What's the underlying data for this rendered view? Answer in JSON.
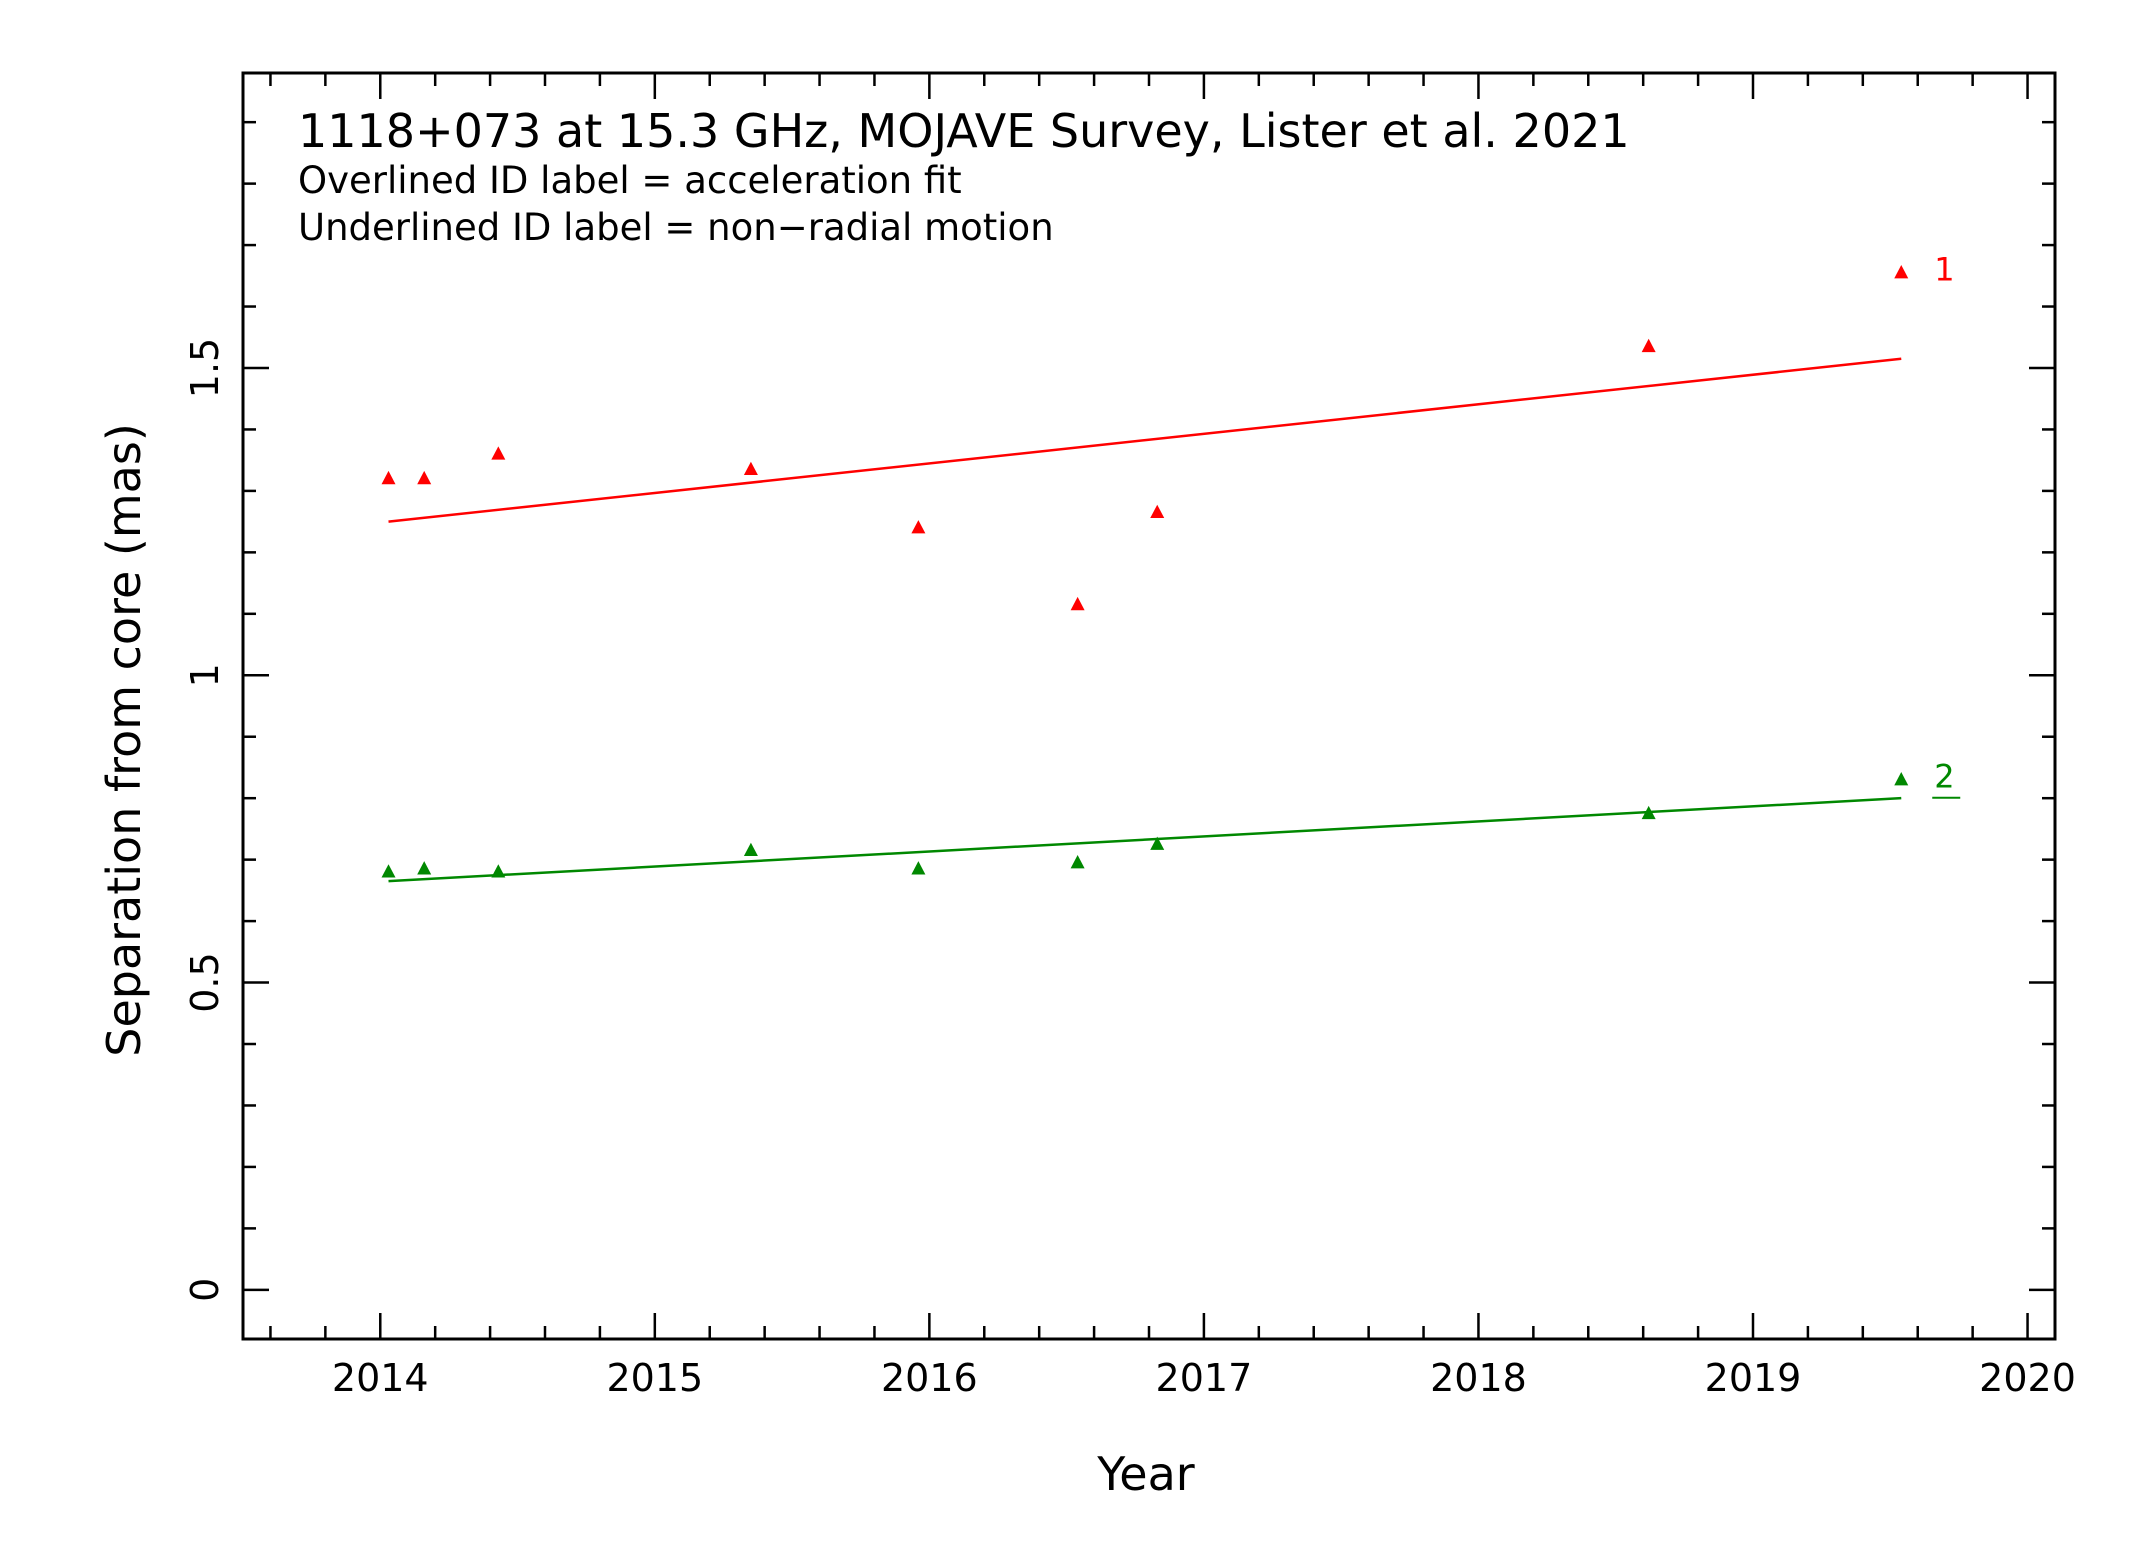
{
  "chart_data": {
    "type": "scatter",
    "annotations": {
      "title": "1118+073 at 15.3 GHz, MOJAVE Survey, Lister et al. 2021",
      "line1": "Overlined ID label = acceleration fit",
      "line2": "Underlined ID label = non−radial motion"
    },
    "xlabel": "Year",
    "ylabel": "Separation from core (mas)",
    "xlim": [
      2013.5,
      2020.1
    ],
    "ylim": [
      -0.08,
      1.98
    ],
    "x_ticks": [
      "2014",
      "2015",
      "2016",
      "2017",
      "2018",
      "2019",
      "2020"
    ],
    "y_ticks": [
      "0",
      "0.5",
      "1",
      "1.5"
    ],
    "grid": false,
    "series": [
      {
        "name": "1",
        "color": "#ff0000",
        "label_style": "plain",
        "x": [
          2014.03,
          2014.16,
          2014.43,
          2015.35,
          2015.96,
          2016.54,
          2016.83,
          2018.62,
          2019.54
        ],
        "y": [
          1.32,
          1.32,
          1.36,
          1.335,
          1.24,
          1.115,
          1.265,
          1.535,
          1.655
        ],
        "fit": {
          "x": [
            2014.03,
            2019.54
          ],
          "y": [
            1.25,
            1.515
          ]
        }
      },
      {
        "name": "2",
        "color": "#008800",
        "label_style": "underlined",
        "x": [
          2014.03,
          2014.16,
          2014.43,
          2015.35,
          2015.96,
          2016.54,
          2016.83,
          2018.62,
          2019.54
        ],
        "y": [
          0.68,
          0.685,
          0.68,
          0.715,
          0.685,
          0.695,
          0.725,
          0.775,
          0.83
        ],
        "fit": {
          "x": [
            2014.03,
            2019.54
          ],
          "y": [
            0.665,
            0.8
          ]
        }
      }
    ]
  }
}
